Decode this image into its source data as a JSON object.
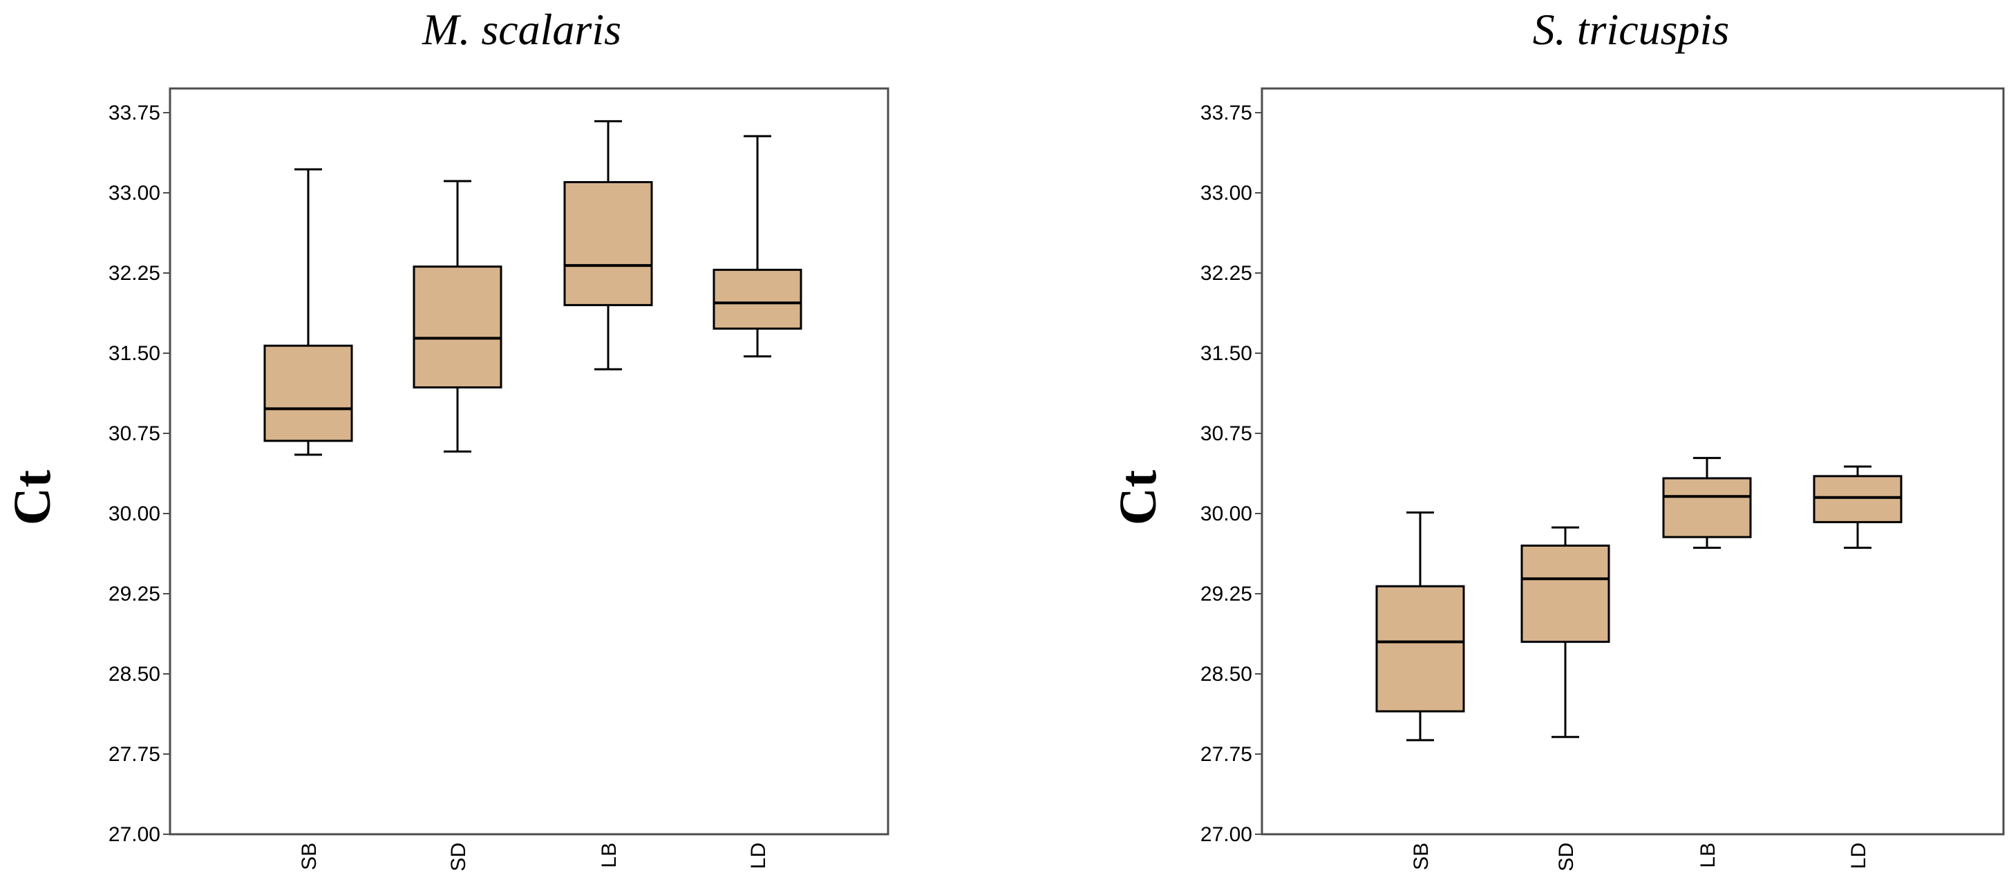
{
  "colors": {
    "box_fill": "#d8b48c",
    "stroke": "#000000",
    "frame": "#4d4d4d"
  },
  "chart_data": [
    {
      "type": "boxplot",
      "title": "M. scalaris",
      "ylabel": "Ct",
      "ylim": [
        27.0,
        34.0
      ],
      "yticks": [
        "27.00",
        "27.75",
        "28.50",
        "29.25",
        "30.00",
        "30.75",
        "31.50",
        "32.25",
        "33.00",
        "33.75"
      ],
      "categories": [
        "SB",
        "SD",
        "LB",
        "LD"
      ],
      "boxes": [
        {
          "category": "SB",
          "min": 30.55,
          "q1": 30.68,
          "median": 30.98,
          "q3": 31.57,
          "max": 33.22
        },
        {
          "category": "SD",
          "min": 30.58,
          "q1": 31.18,
          "median": 31.64,
          "q3": 32.31,
          "max": 33.11
        },
        {
          "category": "LB",
          "min": 31.35,
          "q1": 31.95,
          "median": 32.32,
          "q3": 33.1,
          "max": 33.67
        },
        {
          "category": "LD",
          "min": 31.47,
          "q1": 31.73,
          "median": 31.97,
          "q3": 32.28,
          "max": 33.53
        }
      ],
      "grid": false,
      "legend": "none"
    },
    {
      "type": "boxplot",
      "title": "S. tricuspis",
      "ylabel": "Ct",
      "ylim": [
        27.0,
        34.0
      ],
      "yticks": [
        "27.00",
        "27.75",
        "28.50",
        "29.25",
        "30.00",
        "30.75",
        "31.50",
        "32.25",
        "33.00",
        "33.75"
      ],
      "categories": [
        "SB",
        "SD",
        "LB",
        "LD"
      ],
      "boxes": [
        {
          "category": "SB",
          "min": 27.88,
          "q1": 28.15,
          "median": 28.8,
          "q3": 29.32,
          "max": 30.01
        },
        {
          "category": "SD",
          "min": 27.91,
          "q1": 28.8,
          "median": 29.39,
          "q3": 29.7,
          "max": 29.87
        },
        {
          "category": "LB",
          "min": 29.68,
          "q1": 29.78,
          "median": 30.16,
          "q3": 30.33,
          "max": 30.52
        },
        {
          "category": "LD",
          "min": 29.68,
          "q1": 29.92,
          "median": 30.15,
          "q3": 30.35,
          "max": 30.44
        }
      ],
      "grid": false,
      "legend": "none"
    }
  ]
}
